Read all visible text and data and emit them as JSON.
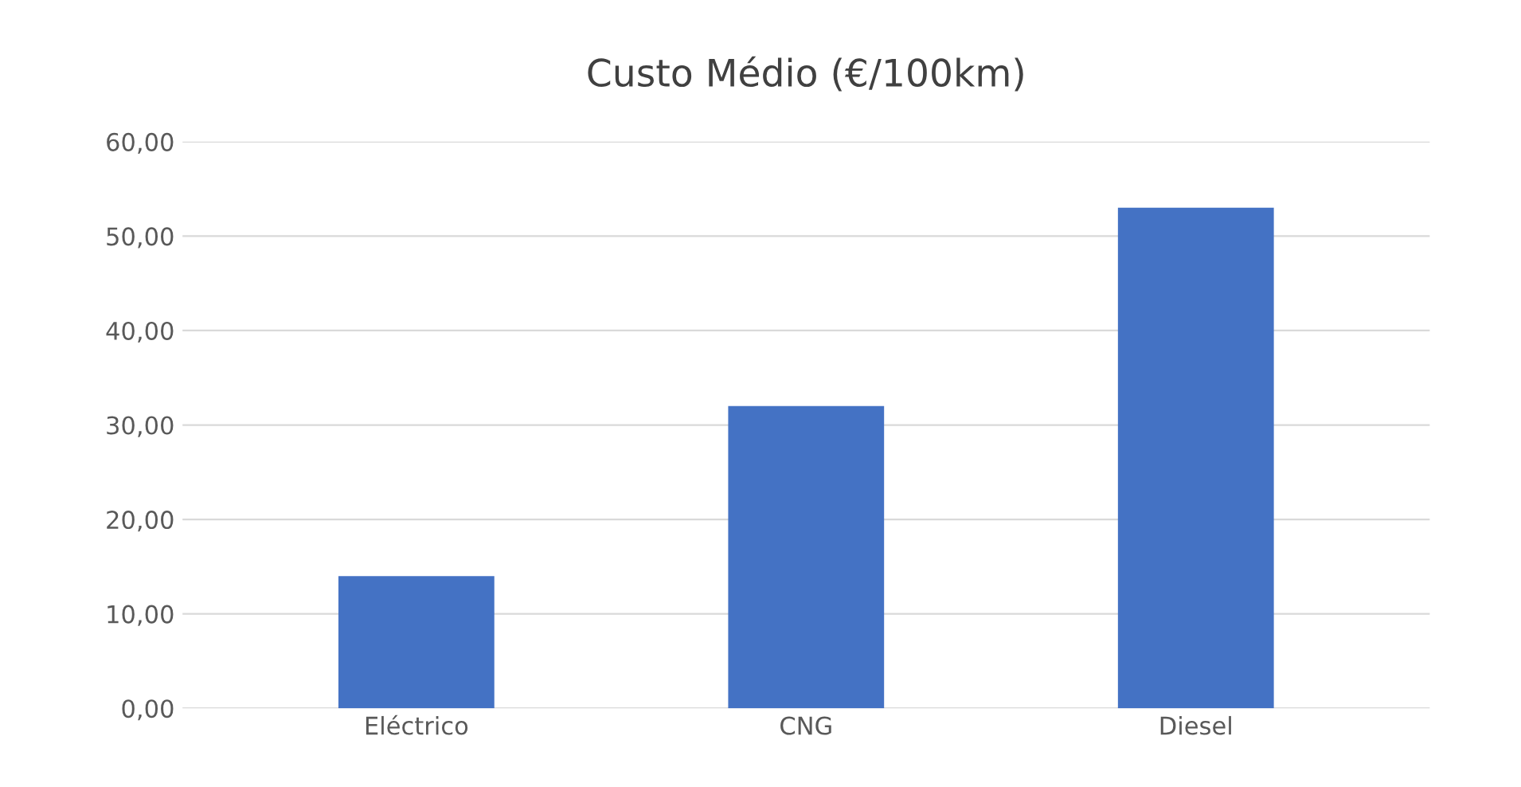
{
  "chart_data": {
    "type": "bar",
    "title": "Custo Médio (€/100km)",
    "categories": [
      "Eléctrico",
      "CNG",
      "Diesel"
    ],
    "values": [
      14,
      32,
      53
    ],
    "color": "#4472c4",
    "ylim": [
      0,
      60
    ],
    "yticks": [
      {
        "value": 0,
        "label": "0,00"
      },
      {
        "value": 10,
        "label": "10,00"
      },
      {
        "value": 20,
        "label": "20,00"
      },
      {
        "value": 30,
        "label": "30,00"
      },
      {
        "value": 40,
        "label": "40,00"
      },
      {
        "value": 50,
        "label": "50,00"
      },
      {
        "value": 60,
        "label": "60,00"
      }
    ],
    "grid": "y",
    "legend": false
  }
}
